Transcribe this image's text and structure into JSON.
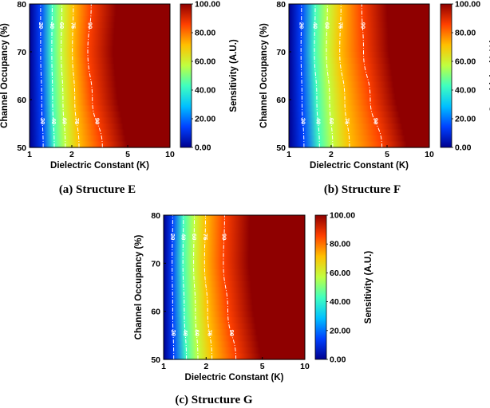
{
  "figure": {
    "panels": [
      {
        "caption": "(a) Structure E"
      },
      {
        "caption": "(b) Structure F"
      },
      {
        "caption": "(c) Structure G"
      }
    ]
  },
  "colors": {
    "scale": [
      "#00008f",
      "#0040ff",
      "#00c0ff",
      "#40ffbf",
      "#c0ff40",
      "#ffc000",
      "#ff4000",
      "#8f0000"
    ],
    "contour_line": "#ffffff",
    "frame": "#000000"
  },
  "chart_data": [
    {
      "type": "heatmap",
      "title": "(a) Structure E",
      "xlabel": "Dielectric Constant (K)",
      "ylabel": "Channel Occupancy (%)",
      "xscale": "log",
      "xlim": [
        1,
        10
      ],
      "ylim": [
        50,
        80
      ],
      "xticks": [
        "1",
        "2",
        "5",
        "10"
      ],
      "xtick_values": [
        1,
        2,
        5,
        10
      ],
      "yticks": [
        "50",
        "60",
        "70",
        "80"
      ],
      "ytick_values": [
        50,
        60,
        70,
        80
      ],
      "colorbar": {
        "label": "Sensitivity (A.U.)",
        "range": [
          0,
          100
        ],
        "ticks": [
          "0.00",
          "20.00",
          "40.00",
          "60.00",
          "80.00",
          "100.00"
        ],
        "tick_values": [
          0,
          20,
          40,
          60,
          80,
          100
        ]
      },
      "contours": [
        {
          "level": 20,
          "label": "20",
          "points": [
            [
              1.25,
              50
            ],
            [
              1.22,
              60
            ],
            [
              1.2,
              70
            ],
            [
              1.2,
              80
            ]
          ]
        },
        {
          "level": 40,
          "label": "40",
          "points": [
            [
              1.5,
              50
            ],
            [
              1.46,
              60
            ],
            [
              1.44,
              70
            ],
            [
              1.45,
              80
            ]
          ]
        },
        {
          "level": 60,
          "label": "60",
          "points": [
            [
              1.8,
              50
            ],
            [
              1.73,
              60
            ],
            [
              1.68,
              70
            ],
            [
              1.7,
              80
            ]
          ]
        },
        {
          "level": 75,
          "label": "75",
          "points": [
            [
              2.25,
              50
            ],
            [
              2.1,
              60
            ],
            [
              2.02,
              70
            ],
            [
              2.05,
              80
            ]
          ]
        },
        {
          "level": 90,
          "label": "90",
          "points": [
            [
              3.3,
              50
            ],
            [
              2.8,
              60
            ],
            [
              2.6,
              70
            ],
            [
              2.75,
              80
            ]
          ]
        }
      ]
    },
    {
      "type": "heatmap",
      "title": "(b) Structure F",
      "xlabel": "Dielectric Constant (K)",
      "ylabel": "Channel Occupancy (%)",
      "xscale": "log",
      "xlim": [
        1,
        10
      ],
      "ylim": [
        50,
        80
      ],
      "xticks": [
        "1",
        "2",
        "5",
        "10"
      ],
      "xtick_values": [
        1,
        2,
        5,
        10
      ],
      "yticks": [
        "50",
        "60",
        "70",
        "80"
      ],
      "ytick_values": [
        50,
        60,
        70,
        80
      ],
      "colorbar": {
        "label": "Sensitivity (A.U.)",
        "range": [
          0,
          100
        ],
        "ticks": [
          "0.00",
          "20.00",
          "40.00",
          "60.00",
          "80.00",
          "100.00"
        ],
        "tick_values": [
          0,
          20,
          40,
          60,
          80,
          100
        ]
      },
      "contours": [
        {
          "level": 20,
          "label": "20",
          "points": [
            [
              1.28,
              50
            ],
            [
              1.24,
              60
            ],
            [
              1.22,
              70
            ],
            [
              1.23,
              80
            ]
          ]
        },
        {
          "level": 40,
          "label": "40",
          "points": [
            [
              1.65,
              50
            ],
            [
              1.58,
              60
            ],
            [
              1.52,
              70
            ],
            [
              1.54,
              80
            ]
          ]
        },
        {
          "level": 60,
          "label": "60",
          "points": [
            [
              2.05,
              50
            ],
            [
              1.95,
              60
            ],
            [
              1.85,
              70
            ],
            [
              1.88,
              80
            ]
          ]
        },
        {
          "level": 75,
          "label": "75",
          "points": [
            [
              2.7,
              50
            ],
            [
              2.5,
              60
            ],
            [
              2.3,
              70
            ],
            [
              2.35,
              80
            ]
          ]
        },
        {
          "level": 90,
          "label": "90",
          "points": [
            [
              4.6,
              50
            ],
            [
              3.8,
              60
            ],
            [
              3.4,
              70
            ],
            [
              3.3,
              80
            ]
          ]
        }
      ]
    },
    {
      "type": "heatmap",
      "title": "(c) Structure G",
      "xlabel": "Dielectric Constant (K)",
      "ylabel": "Channel Occupancy (%)",
      "xscale": "log",
      "xlim": [
        1,
        10
      ],
      "ylim": [
        50,
        80
      ],
      "xticks": [
        "1",
        "2",
        "5",
        "10"
      ],
      "xtick_values": [
        1,
        2,
        5,
        10
      ],
      "yticks": [
        "50",
        "60",
        "70",
        "80"
      ],
      "ytick_values": [
        50,
        60,
        70,
        80
      ],
      "colorbar": {
        "label": "Sensitivity (A.U.)",
        "range": [
          0,
          100
        ],
        "ticks": [
          "0.00",
          "20.00",
          "40.00",
          "60.00",
          "80.00",
          "100.00"
        ],
        "tick_values": [
          0,
          20,
          40,
          60,
          80,
          100
        ]
      },
      "contours": [
        {
          "level": 20,
          "label": "20",
          "points": [
            [
              1.18,
              50
            ],
            [
              1.16,
              60
            ],
            [
              1.15,
              70
            ],
            [
              1.16,
              80
            ]
          ]
        },
        {
          "level": 40,
          "label": "40",
          "points": [
            [
              1.45,
              50
            ],
            [
              1.4,
              60
            ],
            [
              1.37,
              70
            ],
            [
              1.38,
              80
            ]
          ]
        },
        {
          "level": 60,
          "label": "60",
          "points": [
            [
              1.75,
              50
            ],
            [
              1.68,
              60
            ],
            [
              1.63,
              70
            ],
            [
              1.65,
              80
            ]
          ]
        },
        {
          "level": 75,
          "label": "75",
          "points": [
            [
              2.2,
              50
            ],
            [
              2.05,
              60
            ],
            [
              1.95,
              70
            ],
            [
              1.98,
              80
            ]
          ]
        },
        {
          "level": 90,
          "label": "90",
          "points": [
            [
              3.25,
              50
            ],
            [
              2.85,
              60
            ],
            [
              2.65,
              70
            ],
            [
              2.7,
              80
            ]
          ]
        }
      ]
    }
  ]
}
